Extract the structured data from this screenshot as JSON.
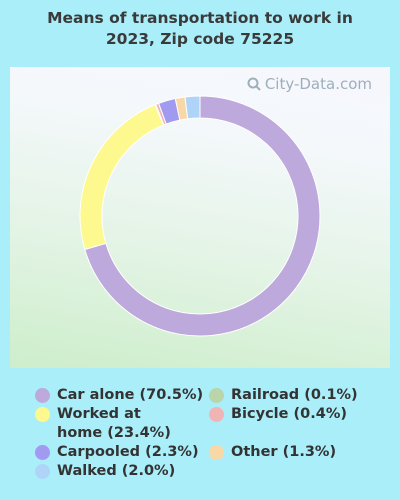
{
  "title_line1": "Means of transportation to work in",
  "title_line2": "2023, Zip code 75225",
  "watermark": "City-Data.com",
  "legend_left": [
    {
      "label": "Car alone (70.5%)",
      "color": "#bda9db"
    },
    {
      "label": "Worked at home (23.4%)",
      "color": "#fdf98e"
    },
    {
      "label": "Carpooled (2.3%)",
      "color": "#a09af0"
    },
    {
      "label": "Walked (2.0%)",
      "color": "#aed5f7"
    }
  ],
  "legend_right": [
    {
      "label": "Railroad (0.1%)",
      "color": "#b9d5a9"
    },
    {
      "label": "Bicycle (0.4%)",
      "color": "#f1b4b4"
    },
    {
      "label": "Other (1.3%)",
      "color": "#f9d8a8"
    }
  ],
  "chart_data": {
    "type": "pie",
    "style": "donut",
    "title": "Means of transportation to work in 2023, Zip code 75225",
    "categories": [
      "Car alone",
      "Worked at home",
      "Railroad",
      "Bicycle",
      "Carpooled",
      "Other",
      "Walked"
    ],
    "values": [
      70.5,
      23.4,
      0.1,
      0.4,
      2.3,
      1.3,
      2.0
    ],
    "colors": [
      "#bda9db",
      "#fdf98e",
      "#b9d5a9",
      "#f1b4b4",
      "#a09af0",
      "#f9d8a8",
      "#aed5f7"
    ],
    "legend": "bottom"
  }
}
